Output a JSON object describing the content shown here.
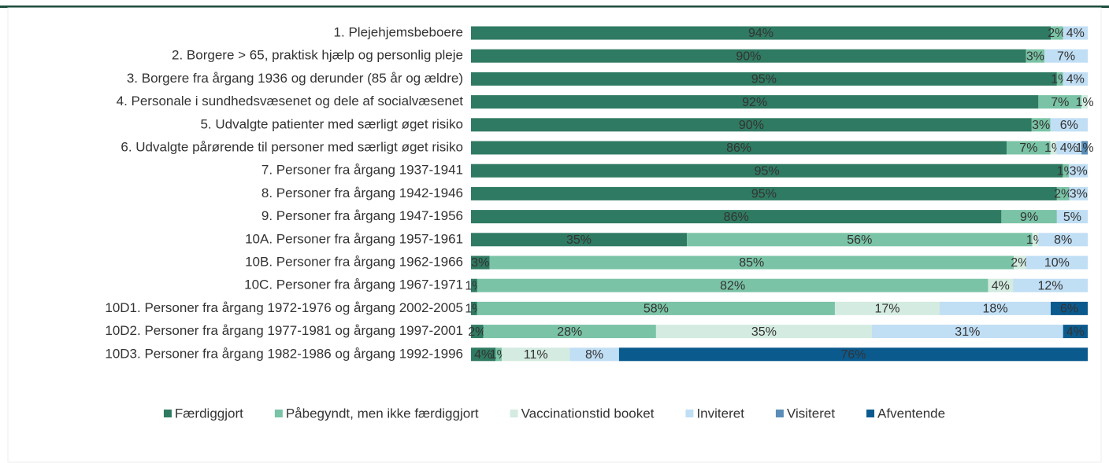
{
  "chart_data": {
    "type": "stacked-bar-horizontal",
    "categories": [
      "1. Plejehjemsbeboere",
      "2. Borgere > 65, praktisk hjælp og personlig pleje",
      "3. Borgere fra årgang 1936 og derunder (85 år og ældre)",
      "4. Personale i sundhedsvæsenet og dele af socialvæsenet",
      "5. Udvalgte patienter med særligt øget risiko",
      "6. Udvalgte pårørende til personer med særligt øget risiko",
      "7. Personer fra årgang 1937-1941",
      "8. Personer fra årgang 1942-1946",
      "9. Personer fra årgang 1947-1956",
      "10A. Personer fra årgang 1957-1961",
      "10B. Personer fra årgang 1962-1966",
      "10C. Personer fra årgang 1967-1971",
      "10D1. Personer fra årgang 1972-1976 og årgang 2002-2005",
      "10D2. Personer fra årgang 1977-1981 og årgang 1997-2001",
      "10D3. Personer fra årgang 1982-1986 og årgang 1992-1996"
    ],
    "series": [
      {
        "name": "Færdiggjort",
        "color": "#2f7a62",
        "label_color": "#ffffff",
        "values": [
          94,
          90,
          95,
          92,
          90,
          86,
          95,
          95,
          86,
          35,
          3,
          1,
          1,
          2,
          4
        ],
        "value_labels": [
          "94%",
          "90%",
          "95%",
          "92%",
          "90%",
          "86%",
          "95%",
          "95%",
          "86%",
          "35%",
          "3%",
          "1%",
          "1%",
          "2%",
          "4%"
        ]
      },
      {
        "name": "Påbegyndt, men ikke færdiggjort",
        "color": "#7ac3a6",
        "label_color": "#ffffff",
        "values": [
          2,
          3,
          1,
          7,
          3,
          7,
          1,
          2,
          9,
          56,
          85,
          82,
          58,
          28,
          1
        ],
        "value_labels": [
          "2%",
          "3%",
          "1%",
          "7%",
          "3%",
          "7%",
          "1%",
          "2%",
          "9%",
          "56%",
          "85%",
          "82%",
          "58%",
          "28%",
          "1%"
        ]
      },
      {
        "name": "Vaccinationstid booket",
        "color": "#d3ebe0",
        "label_color": "#222222",
        "values": [
          null,
          null,
          null,
          1,
          null,
          1,
          null,
          null,
          null,
          1,
          2,
          4,
          17,
          35,
          11
        ],
        "value_labels": [
          null,
          null,
          null,
          "1%",
          null,
          "1%",
          null,
          null,
          null,
          "1%",
          "2%",
          "4%",
          "17%",
          "35%",
          "11%"
        ]
      },
      {
        "name": "Inviteret",
        "color": "#c0def4",
        "label_color": "#111111",
        "values": [
          4,
          7,
          4,
          null,
          6,
          4,
          3,
          3,
          5,
          8,
          10,
          12,
          18,
          31,
          8
        ],
        "value_labels": [
          "4%",
          "7%",
          "4%",
          null,
          "6%",
          "4%",
          "3%",
          "3%",
          "5%",
          "8%",
          "10%",
          "12%",
          "18%",
          "31%",
          "8%"
        ]
      },
      {
        "name": "Visiteret",
        "color": "#5a8db7",
        "label_color": "#111111",
        "values": [
          null,
          null,
          null,
          null,
          null,
          1,
          null,
          null,
          null,
          null,
          null,
          null,
          null,
          null,
          null
        ],
        "value_labels": [
          null,
          null,
          null,
          null,
          null,
          "1%",
          null,
          null,
          null,
          null,
          null,
          null,
          null,
          null,
          null
        ]
      },
      {
        "name": "Afventende",
        "color": "#0b5a8e",
        "label_color": "#ffffff",
        "values": [
          null,
          null,
          null,
          null,
          null,
          null,
          null,
          null,
          null,
          null,
          null,
          null,
          6,
          4,
          76
        ],
        "value_labels": [
          null,
          null,
          null,
          null,
          null,
          null,
          null,
          null,
          null,
          null,
          null,
          null,
          "6%",
          "4%",
          "76%"
        ]
      }
    ]
  }
}
